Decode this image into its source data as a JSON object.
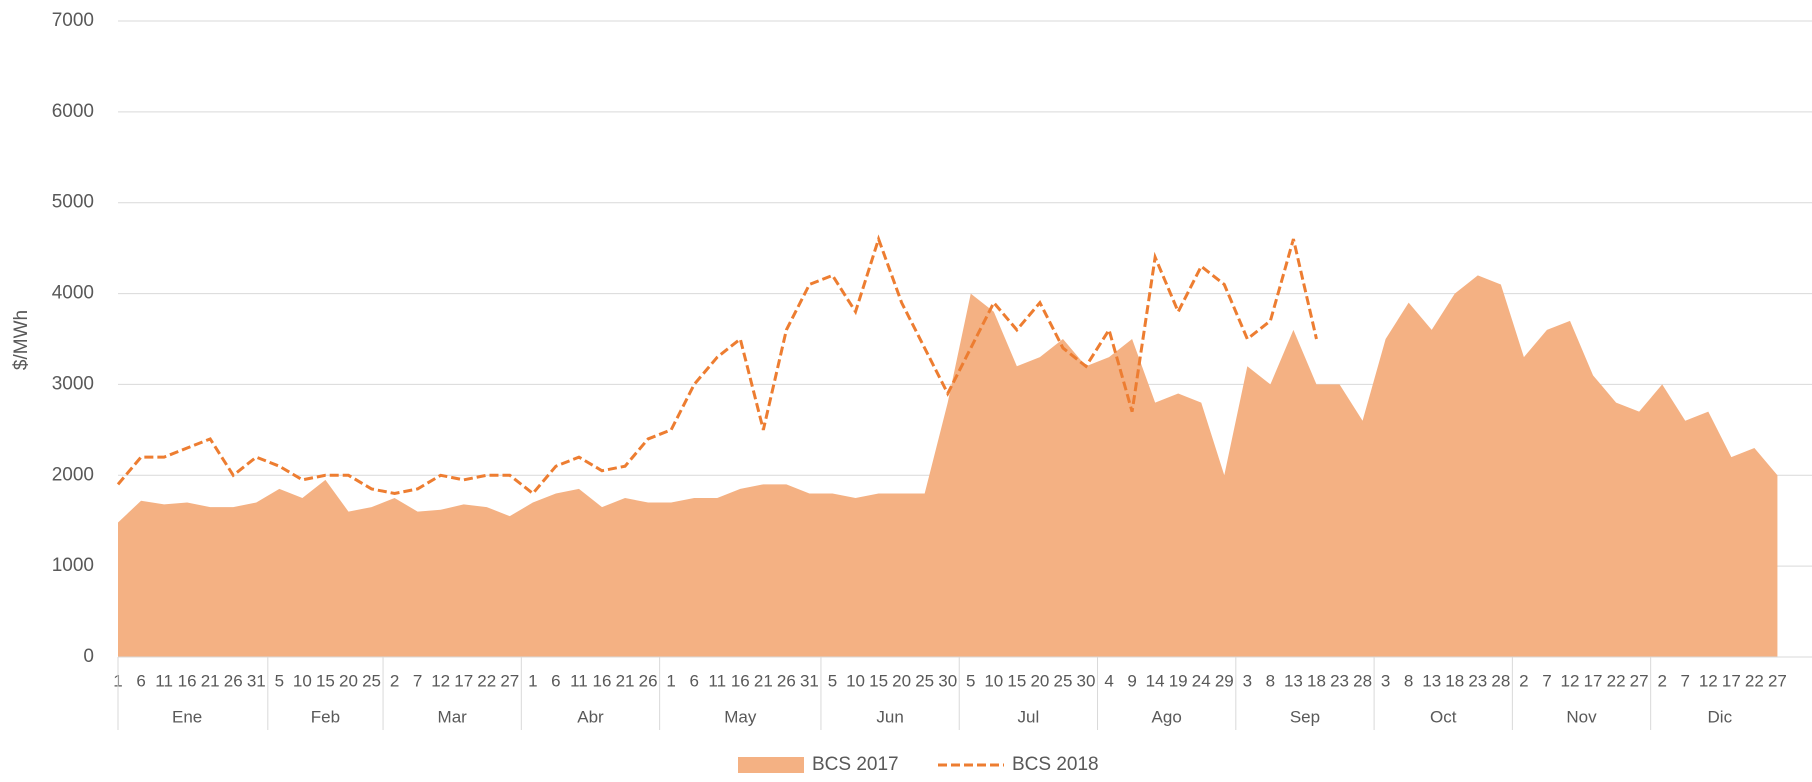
{
  "chart_data": {
    "type": "area-line",
    "y_label": "$/MWh",
    "ylim": [
      0,
      7000
    ],
    "yticks": [
      0,
      1000,
      2000,
      3000,
      4000,
      5000,
      6000,
      7000
    ],
    "grid": true,
    "months": [
      {
        "name": "Ene",
        "days": [
          "1",
          "6",
          "11",
          "16",
          "21",
          "26",
          "31"
        ]
      },
      {
        "name": "Feb",
        "days": [
          "5",
          "10",
          "15",
          "20",
          "25"
        ]
      },
      {
        "name": "Mar",
        "days": [
          "2",
          "7",
          "12",
          "17",
          "22",
          "27"
        ]
      },
      {
        "name": "Abr",
        "days": [
          "1",
          "6",
          "11",
          "16",
          "21",
          "26"
        ]
      },
      {
        "name": "May",
        "days": [
          "1",
          "6",
          "11",
          "16",
          "21",
          "26",
          "31"
        ]
      },
      {
        "name": "Jun",
        "days": [
          "5",
          "10",
          "15",
          "20",
          "25",
          "30"
        ]
      },
      {
        "name": "Jul",
        "days": [
          "5",
          "10",
          "15",
          "20",
          "25",
          "30"
        ]
      },
      {
        "name": "Ago",
        "days": [
          "4",
          "9",
          "14",
          "19",
          "24",
          "29"
        ]
      },
      {
        "name": "Sep",
        "days": [
          "3",
          "8",
          "13",
          "18",
          "23",
          "28"
        ]
      },
      {
        "name": "Oct",
        "days": [
          "3",
          "8",
          "13",
          "18",
          "23",
          "28"
        ]
      },
      {
        "name": "Nov",
        "days": [
          "2",
          "7",
          "12",
          "17",
          "22",
          "27"
        ]
      },
      {
        "name": "Dic",
        "days": [
          "2",
          "7",
          "12",
          "17",
          "22",
          "27"
        ]
      }
    ],
    "series": [
      {
        "name": "BCS 2017",
        "kind": "area",
        "color": "#f4b183",
        "values": [
          1480,
          1720,
          1680,
          1700,
          1650,
          1650,
          1700,
          1850,
          1750,
          1950,
          1600,
          1650,
          1750,
          1600,
          1620,
          1680,
          1650,
          1550,
          1700,
          1800,
          1850,
          1650,
          1750,
          1700,
          1700,
          1750,
          1750,
          1850,
          1900,
          1900,
          1800,
          1800,
          1750,
          1800,
          1800,
          1800,
          2800,
          4000,
          3800,
          3200,
          3300,
          3500,
          3200,
          3300,
          3500,
          2800,
          2900,
          2800,
          2000,
          3200,
          3000,
          3600,
          3000,
          3000,
          2600,
          3500,
          3900,
          3600,
          4000,
          4200,
          4100,
          3300,
          3600,
          3700,
          3100,
          2800,
          2700,
          3000,
          2600,
          2700,
          2200,
          2300,
          2000
        ]
      },
      {
        "name": "BCS 2018",
        "kind": "line",
        "color": "#ed7d31",
        "values": [
          1900,
          2200,
          2200,
          2300,
          2400,
          2000,
          2200,
          2100,
          1950,
          2000,
          2000,
          1850,
          1800,
          1850,
          2000,
          1950,
          2000,
          2000,
          1800,
          2100,
          2200,
          2050,
          2100,
          2400,
          2500,
          3000,
          3300,
          3500,
          2500,
          3600,
          4100,
          4200,
          3800,
          4600,
          3900,
          3400,
          2900,
          3400,
          3900,
          3600,
          3900,
          3400,
          3200,
          3600,
          2700,
          4400,
          3800,
          4300,
          4100,
          3500,
          3700,
          4600,
          3500,
          null,
          null,
          null,
          null,
          null,
          null,
          null,
          null,
          null,
          null,
          null,
          null,
          null,
          null,
          null,
          null,
          null,
          null,
          null,
          null
        ]
      }
    ]
  }
}
